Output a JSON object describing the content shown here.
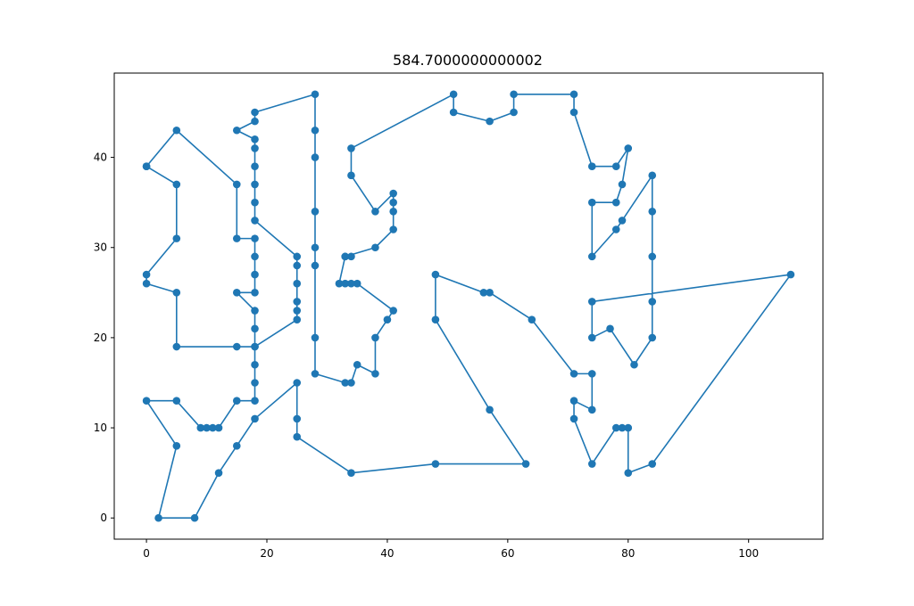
{
  "chart_data": {
    "type": "line",
    "title": "584.7000000000002",
    "xlabel": "",
    "ylabel": "",
    "xlim": [
      -5.35,
      112.35
    ],
    "ylim": [
      -2.35,
      49.35
    ],
    "x_ticks": [
      0,
      20,
      40,
      60,
      80,
      100
    ],
    "y_ticks": [
      0,
      10,
      20,
      30,
      40
    ],
    "grid": false,
    "legend": "none",
    "line_color": "#1f77b4",
    "marker": "circle",
    "series": [
      {
        "points": [
          [
            0,
            39
          ],
          [
            5,
            43
          ],
          [
            15,
            37
          ],
          [
            15,
            31
          ],
          [
            18,
            31
          ],
          [
            18,
            29
          ],
          [
            18,
            27
          ],
          [
            18,
            25
          ],
          [
            15,
            25
          ],
          [
            18,
            23
          ],
          [
            18,
            21
          ],
          [
            18,
            19
          ],
          [
            25,
            22
          ],
          [
            25,
            23
          ],
          [
            25,
            24
          ],
          [
            25,
            26
          ],
          [
            25,
            28
          ],
          [
            25,
            29
          ],
          [
            18,
            33
          ],
          [
            18,
            35
          ],
          [
            18,
            37
          ],
          [
            18,
            39
          ],
          [
            18,
            41
          ],
          [
            18,
            42
          ],
          [
            15,
            43
          ],
          [
            18,
            44
          ],
          [
            18,
            45
          ],
          [
            28,
            47
          ],
          [
            28,
            43
          ],
          [
            28,
            40
          ],
          [
            28,
            34
          ],
          [
            28,
            30
          ],
          [
            28,
            28
          ],
          [
            28,
            20
          ],
          [
            28,
            16
          ],
          [
            33,
            15
          ],
          [
            34,
            15
          ],
          [
            35,
            17
          ],
          [
            38,
            16
          ],
          [
            38,
            20
          ],
          [
            40,
            22
          ],
          [
            41,
            23
          ],
          [
            35,
            26
          ],
          [
            34,
            26
          ],
          [
            33,
            26
          ],
          [
            32,
            26
          ],
          [
            33,
            29
          ],
          [
            34,
            29
          ],
          [
            33,
            29
          ],
          [
            38,
            30
          ],
          [
            41,
            32
          ],
          [
            41,
            34
          ],
          [
            41,
            35
          ],
          [
            41,
            36
          ],
          [
            38,
            34
          ],
          [
            34,
            38
          ],
          [
            34,
            41
          ],
          [
            51,
            47
          ],
          [
            51,
            45
          ],
          [
            57,
            44
          ],
          [
            61,
            45
          ],
          [
            61,
            47
          ],
          [
            71,
            47
          ],
          [
            71,
            45
          ],
          [
            74,
            39
          ],
          [
            78,
            39
          ],
          [
            80,
            41
          ],
          [
            79,
            37
          ],
          [
            78,
            35
          ],
          [
            74,
            35
          ],
          [
            74,
            29
          ],
          [
            78,
            32
          ],
          [
            79,
            33
          ],
          [
            84,
            38
          ],
          [
            84,
            34
          ],
          [
            84,
            29
          ],
          [
            84,
            24
          ],
          [
            84,
            20
          ],
          [
            81,
            17
          ],
          [
            77,
            21
          ],
          [
            74,
            20
          ],
          [
            74,
            24
          ],
          [
            107,
            27
          ],
          [
            84,
            6
          ],
          [
            80,
            5
          ],
          [
            80,
            10
          ],
          [
            79,
            10
          ],
          [
            78,
            10
          ],
          [
            74,
            6
          ],
          [
            71,
            11
          ],
          [
            71,
            13
          ],
          [
            74,
            12
          ],
          [
            74,
            16
          ],
          [
            71,
            16
          ],
          [
            64,
            22
          ],
          [
            57,
            25
          ],
          [
            56,
            25
          ],
          [
            48,
            27
          ],
          [
            48,
            22
          ],
          [
            57,
            12
          ],
          [
            63,
            6
          ],
          [
            48,
            6
          ],
          [
            34,
            5
          ],
          [
            25,
            9
          ],
          [
            25,
            11
          ],
          [
            25,
            15
          ],
          [
            18,
            11
          ],
          [
            15,
            8
          ],
          [
            12,
            5
          ],
          [
            8,
            0
          ],
          [
            2,
            0
          ],
          [
            5,
            8
          ],
          [
            0,
            13
          ],
          [
            5,
            13
          ],
          [
            9,
            10
          ],
          [
            10,
            10
          ],
          [
            11,
            10
          ],
          [
            12,
            10
          ],
          [
            15,
            13
          ],
          [
            18,
            13
          ],
          [
            18,
            15
          ],
          [
            18,
            17
          ],
          [
            18,
            19
          ],
          [
            15,
            19
          ],
          [
            5,
            19
          ],
          [
            5,
            25
          ],
          [
            0,
            26
          ],
          [
            0,
            27
          ],
          [
            5,
            31
          ],
          [
            5,
            37
          ],
          [
            0,
            39
          ]
        ]
      }
    ]
  }
}
